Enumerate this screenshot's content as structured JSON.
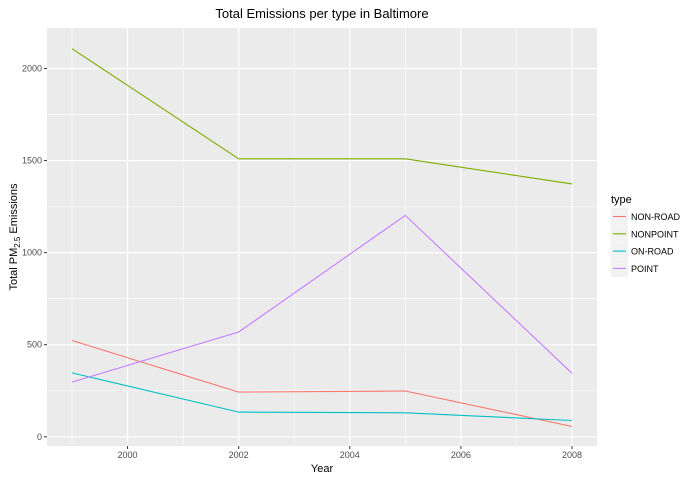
{
  "chart_data": {
    "type": "line",
    "title": "Total Emissions per type in Baltimore",
    "xlabel": "Year",
    "ylabel_parts": {
      "prefix": "Total PM",
      "subscript": "2.5",
      "suffix": " Emissions"
    },
    "x": [
      1999,
      2002,
      2005,
      2008
    ],
    "xlim": [
      1998.55,
      2008.45
    ],
    "ylim": [
      -50,
      2220
    ],
    "x_ticks": [
      2000,
      2002,
      2004,
      2006,
      2008
    ],
    "x_tick_labels": [
      "2000",
      "2002",
      "2004",
      "2006",
      "2008"
    ],
    "y_ticks": [
      0,
      500,
      1000,
      1500,
      2000
    ],
    "y_tick_labels": [
      "0",
      "500",
      "1000",
      "1500",
      "2000"
    ],
    "grid": true,
    "legend_title": "type",
    "legend_position": "right",
    "series": [
      {
        "name": "NON-ROAD",
        "color": "#F8766D",
        "values": [
          522.9,
          242.7,
          248.9,
          55.8
        ]
      },
      {
        "name": "NONPOINT",
        "color": "#7CAE00",
        "values": [
          2107.6,
          1509.5,
          1509.5,
          1373.2
        ]
      },
      {
        "name": "ON-ROAD",
        "color": "#00BFC4",
        "values": [
          346.8,
          134.3,
          130.4,
          88.3
        ]
      },
      {
        "name": "POINT",
        "color": "#C77CFF",
        "values": [
          296.8,
          569.3,
          1202.5,
          344.98
        ]
      }
    ]
  }
}
